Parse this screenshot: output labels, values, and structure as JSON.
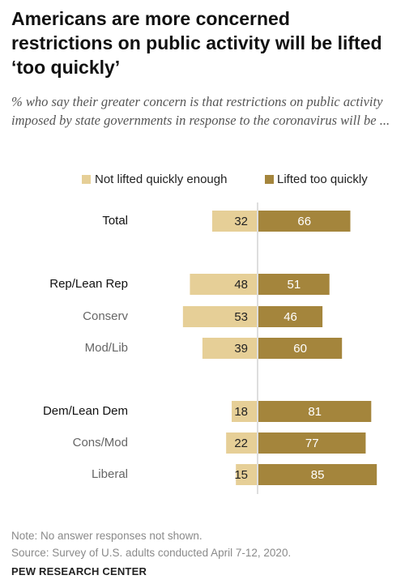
{
  "title": "Americans are more concerned restrictions on public activity will be lifted ‘too quickly’",
  "subtitle": "% who say their greater concern is that restrictions on public activity imposed by state governments in response to the coronavirus will be ...",
  "note": "Note: No answer responses not shown.",
  "source": "Source: Survey of U.S. adults conducted April 7-12, 2020.",
  "brand": "PEW RESEARCH CENTER",
  "colors": {
    "not_quickly": "#e6cf97",
    "too_quickly": "#a4853c",
    "divider": "#bdbdbd"
  },
  "chart_data": {
    "type": "bar",
    "orientation": "diverging-horizontal",
    "categories": [
      "Total",
      "Rep/Lean Rep",
      "Conserv",
      "Mod/Lib",
      "Dem/Lean Dem",
      "Cons/Mod",
      "Liberal"
    ],
    "series": [
      {
        "name": "Not lifted quickly enough",
        "values": [
          32,
          48,
          53,
          39,
          18,
          22,
          15
        ]
      },
      {
        "name": "Lifted too quickly",
        "values": [
          66,
          51,
          46,
          60,
          81,
          77,
          85
        ]
      }
    ],
    "legend": "top"
  }
}
